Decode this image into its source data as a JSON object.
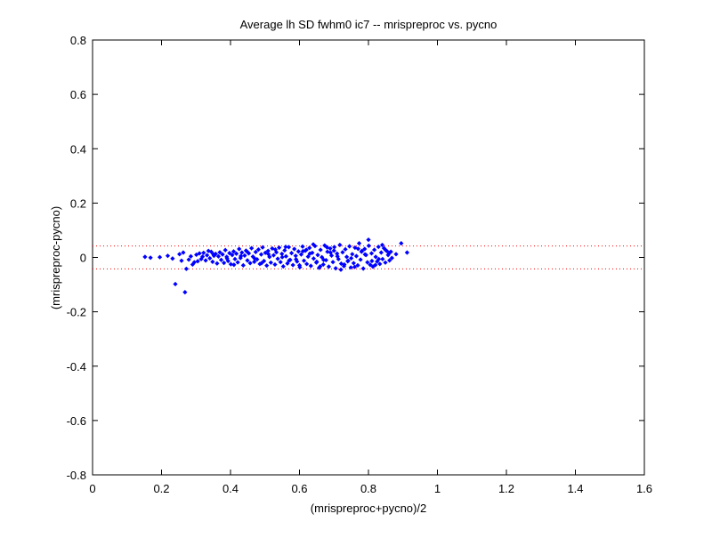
{
  "chart_data": {
    "type": "scatter",
    "title": "Average lh SD fwhm0 ic7 -- mrispreproc vs. pycno",
    "xlabel": "(mrispreproc+pycno)/2",
    "ylabel": "(mrispreproc-pycno)",
    "xlim": [
      0,
      1.6
    ],
    "ylim": [
      -0.8,
      0.8
    ],
    "xticks": [
      0,
      0.2,
      0.4,
      0.6,
      0.8,
      1,
      1.2,
      1.4,
      1.6
    ],
    "xtick_labels": [
      "0",
      "0.2",
      "0.4",
      "0.6",
      "0.8",
      "1",
      "1.2",
      "1.4",
      "1.6"
    ],
    "yticks": [
      -0.8,
      -0.6,
      -0.4,
      -0.2,
      0,
      0.2,
      0.4,
      0.6,
      0.8
    ],
    "ytick_labels": [
      "-0.8",
      "-0.6",
      "-0.4",
      "-0.2",
      "0",
      "0.2",
      "0.4",
      "0.6",
      "0.8"
    ],
    "grid": false,
    "marker_color": "#0000ff",
    "reference_line_color": "#ff0000",
    "reference_lines_y": [
      0.042,
      -0.042
    ],
    "points": [
      [
        0.152,
        0.002
      ],
      [
        0.168,
        -0.001
      ],
      [
        0.195,
        0.001
      ],
      [
        0.218,
        0.006
      ],
      [
        0.232,
        -0.004
      ],
      [
        0.24,
        -0.098
      ],
      [
        0.252,
        0.012
      ],
      [
        0.258,
        -0.012
      ],
      [
        0.263,
        0.018
      ],
      [
        0.268,
        -0.128
      ],
      [
        0.272,
        -0.042
      ],
      [
        0.279,
        -0.008
      ],
      [
        0.285,
        0.004
      ],
      [
        0.29,
        -0.026
      ],
      [
        0.295,
        -0.018
      ],
      [
        0.301,
        0.01
      ],
      [
        0.305,
        -0.014
      ],
      [
        0.31,
        0.015
      ],
      [
        0.315,
        -0.006
      ],
      [
        0.319,
        0.003
      ],
      [
        0.322,
        0.017
      ],
      [
        0.328,
        -0.011
      ],
      [
        0.332,
        0.008
      ],
      [
        0.336,
        0.024
      ],
      [
        0.34,
        -0.003
      ],
      [
        0.344,
        0.021
      ],
      [
        0.348,
        -0.016
      ],
      [
        0.352,
        0.006
      ],
      [
        0.357,
        0.013
      ],
      [
        0.361,
        -0.022
      ],
      [
        0.365,
        0.004
      ],
      [
        0.369,
        0.019
      ],
      [
        0.373,
        -0.009
      ],
      [
        0.377,
        0.011
      ],
      [
        0.381,
        -0.02
      ],
      [
        0.385,
        0.027
      ],
      [
        0.389,
        0.002
      ],
      [
        0.393,
        -0.013
      ],
      [
        0.397,
        0.016
      ],
      [
        0.401,
        -0.025
      ],
      [
        0.405,
        0.009
      ],
      [
        0.409,
        0.022
      ],
      [
        0.413,
        -0.006
      ],
      [
        0.417,
        0.014
      ],
      [
        0.421,
        -0.018
      ],
      [
        0.425,
        0.031
      ],
      [
        0.429,
        -0.002
      ],
      [
        0.433,
        0.018
      ],
      [
        0.437,
        -0.029
      ],
      [
        0.441,
        0.007
      ],
      [
        0.445,
        0.025
      ],
      [
        0.449,
        -0.011
      ],
      [
        0.453,
        0.015
      ],
      [
        0.457,
        -0.021
      ],
      [
        0.461,
        0.034
      ],
      [
        0.465,
        0.003
      ],
      [
        0.469,
        -0.016
      ],
      [
        0.473,
        0.02
      ],
      [
        0.477,
        -0.007
      ],
      [
        0.481,
        0.029
      ],
      [
        0.485,
        -0.024
      ],
      [
        0.489,
        0.011
      ],
      [
        0.493,
        0.037
      ],
      [
        0.497,
        -0.013
      ],
      [
        0.501,
        0.017
      ],
      [
        0.505,
        -0.03
      ],
      [
        0.509,
        0.024
      ],
      [
        0.513,
        0.002
      ],
      [
        0.517,
        -0.019
      ],
      [
        0.521,
        0.033
      ],
      [
        0.525,
        0.008
      ],
      [
        0.529,
        -0.026
      ],
      [
        0.533,
        0.019
      ],
      [
        0.537,
        -0.005
      ],
      [
        0.541,
        0.036
      ],
      [
        0.545,
        -0.017
      ],
      [
        0.549,
        0.013
      ],
      [
        0.553,
        -0.033
      ],
      [
        0.557,
        0.026
      ],
      [
        0.561,
        0.004
      ],
      [
        0.565,
        -0.022
      ],
      [
        0.569,
        0.038
      ],
      [
        0.573,
        -0.009
      ],
      [
        0.577,
        0.016
      ],
      [
        0.581,
        -0.028
      ],
      [
        0.585,
        0.031
      ],
      [
        0.589,
        0.006
      ],
      [
        0.593,
        -0.015
      ],
      [
        0.597,
        0.022
      ],
      [
        0.601,
        -0.036
      ],
      [
        0.605,
        0.011
      ],
      [
        0.609,
        0.04
      ],
      [
        0.613,
        -0.012
      ],
      [
        0.617,
        0.025
      ],
      [
        0.621,
        -0.024
      ],
      [
        0.625,
        0.003
      ],
      [
        0.629,
        0.035
      ],
      [
        0.633,
        -0.031
      ],
      [
        0.637,
        0.017
      ],
      [
        0.641,
        -0.004
      ],
      [
        0.645,
        0.042
      ],
      [
        0.649,
        -0.019
      ],
      [
        0.653,
        0.009
      ],
      [
        0.657,
        -0.038
      ],
      [
        0.661,
        0.028
      ],
      [
        0.665,
        0.001
      ],
      [
        0.669,
        -0.026
      ],
      [
        0.673,
        0.044
      ],
      [
        0.677,
        -0.01
      ],
      [
        0.681,
        0.021
      ],
      [
        0.685,
        -0.034
      ],
      [
        0.689,
        0.033
      ],
      [
        0.693,
        0.007
      ],
      [
        0.697,
        -0.017
      ],
      [
        0.701,
        0.038
      ],
      [
        0.705,
        -0.04
      ],
      [
        0.709,
        0.014
      ],
      [
        0.713,
        -0.006
      ],
      [
        0.717,
        0.046
      ],
      [
        0.721,
        -0.023
      ],
      [
        0.725,
        0.019
      ],
      [
        0.729,
        -0.032
      ],
      [
        0.733,
        0.03
      ],
      [
        0.737,
        0.002
      ],
      [
        0.741,
        -0.012
      ],
      [
        0.745,
        0.041
      ],
      [
        0.749,
        -0.037
      ],
      [
        0.753,
        0.012
      ],
      [
        0.757,
        -0.021
      ],
      [
        0.761,
        0.036
      ],
      [
        0.765,
        0.005
      ],
      [
        0.769,
        -0.029
      ],
      [
        0.773,
        0.052
      ],
      [
        0.777,
        -0.008
      ],
      [
        0.781,
        0.024
      ],
      [
        0.785,
        -0.041
      ],
      [
        0.789,
        0.031
      ],
      [
        0.793,
        0.009
      ],
      [
        0.797,
        -0.018
      ],
      [
        0.801,
        0.043
      ],
      [
        0.805,
        -0.027
      ],
      [
        0.809,
        0.015
      ],
      [
        0.813,
        -0.034
      ],
      [
        0.817,
        0.028
      ],
      [
        0.821,
        0.002
      ],
      [
        0.825,
        -0.015
      ],
      [
        0.829,
        0.039
      ],
      [
        0.833,
        -0.024
      ],
      [
        0.837,
        0.018
      ],
      [
        0.841,
        -0.006
      ],
      [
        0.845,
        0.034
      ],
      [
        0.849,
        -0.019
      ],
      [
        0.853,
        0.024
      ],
      [
        0.857,
        0.009
      ],
      [
        0.861,
        -0.011
      ],
      [
        0.865,
        0.021
      ],
      [
        0.868,
        -0.002
      ],
      [
        0.88,
        0.012
      ],
      [
        0.895,
        0.052
      ],
      [
        0.912,
        0.018
      ],
      [
        0.43,
        0.005
      ],
      [
        0.47,
        -0.004
      ],
      [
        0.51,
        0.012
      ],
      [
        0.55,
        0.001
      ],
      [
        0.59,
        -0.007
      ],
      [
        0.63,
        0.014
      ],
      [
        0.67,
        -0.009
      ],
      [
        0.71,
        0.004
      ],
      [
        0.75,
        -0.003
      ],
      [
        0.79,
        0.011
      ],
      [
        0.83,
        -0.006
      ],
      [
        0.39,
        -0.004
      ],
      [
        0.35,
        0.012
      ],
      [
        0.62,
        0.028
      ],
      [
        0.66,
        -0.033
      ],
      [
        0.7,
        0.025
      ],
      [
        0.74,
        -0.014
      ],
      [
        0.78,
        0.021
      ],
      [
        0.82,
        -0.028
      ],
      [
        0.86,
        0.016
      ],
      [
        0.41,
        -0.027
      ],
      [
        0.45,
        0.019
      ],
      [
        0.49,
        -0.021
      ],
      [
        0.53,
        0.029
      ],
      [
        0.57,
        -0.011
      ],
      [
        0.61,
        0.023
      ],
      [
        0.65,
        -0.016
      ],
      [
        0.69,
        0.018
      ],
      [
        0.73,
        -0.026
      ],
      [
        0.77,
        0.032
      ],
      [
        0.81,
        -0.013
      ],
      [
        0.85,
        0.027
      ],
      [
        0.8,
        0.065
      ],
      [
        0.64,
        0.048
      ],
      [
        0.72,
        -0.045
      ],
      [
        0.56,
        0.039
      ],
      [
        0.6,
        -0.029
      ],
      [
        0.68,
        0.037
      ],
      [
        0.76,
        -0.035
      ],
      [
        0.84,
        0.046
      ]
    ]
  }
}
